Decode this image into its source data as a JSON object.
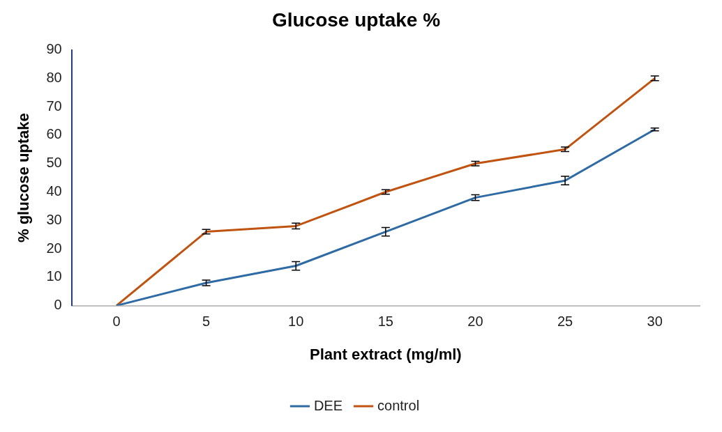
{
  "chart_data": {
    "type": "line",
    "title": "Glucose uptake %",
    "xlabel": "Plant extract (mg/ml)",
    "ylabel": "% glucose uptake",
    "categories": [
      "0",
      "5",
      "10",
      "15",
      "20",
      "25",
      "30"
    ],
    "series": [
      {
        "name": "DEE",
        "color": "#2e6aa3",
        "values": [
          0,
          8,
          14,
          26,
          38,
          44,
          62
        ],
        "errors": [
          null,
          1,
          1.5,
          1.5,
          1,
          1.5,
          0.5
        ]
      },
      {
        "name": "control",
        "color": "#c0530f",
        "values": [
          0,
          26,
          28,
          40,
          50,
          55,
          80
        ],
        "errors": [
          null,
          0.8,
          1,
          0.8,
          0.8,
          0.8,
          0.8
        ]
      }
    ],
    "ylim": [
      0,
      90
    ],
    "yticks": [
      0,
      10,
      20,
      30,
      40,
      50,
      60,
      70,
      80,
      90
    ],
    "grid": false,
    "legend": "bottom",
    "line_style": "solid"
  }
}
